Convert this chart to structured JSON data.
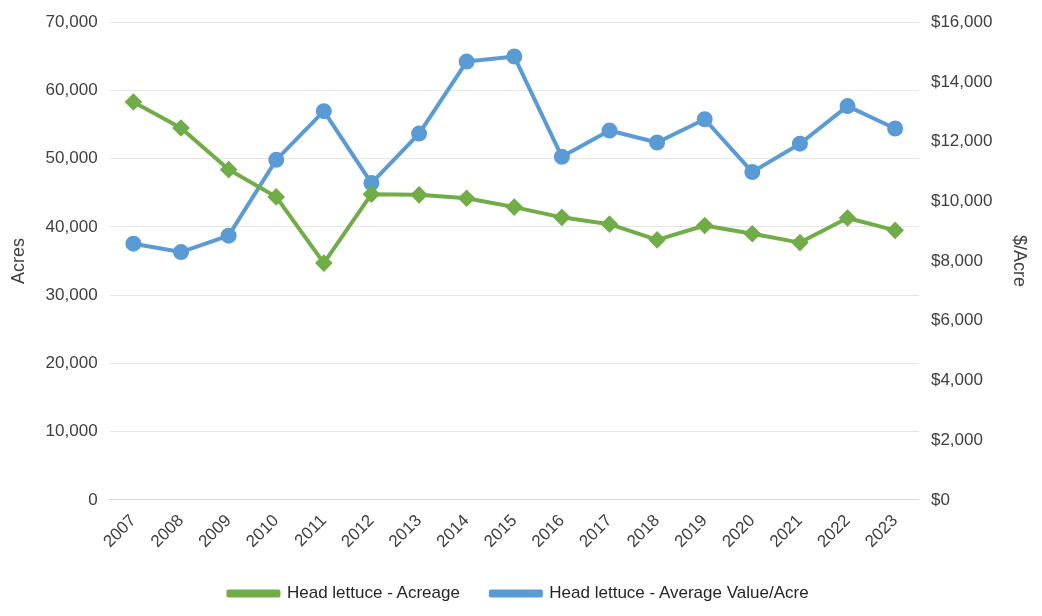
{
  "chart_data": {
    "type": "line",
    "ylabel": "Acres",
    "y2label": "$/Acre",
    "categories": [
      "2007",
      "2008",
      "2009",
      "2010",
      "2011",
      "2012",
      "2013",
      "2014",
      "2015",
      "2016",
      "2017",
      "2018",
      "2019",
      "2020",
      "2021",
      "2022",
      "2023"
    ],
    "series": [
      {
        "name": "Head lettuce - Acreage",
        "color": "#70ad47",
        "marker": "diamond",
        "values": [
          58300,
          54500,
          48400,
          44400,
          34700,
          44800,
          44700,
          44200,
          42900,
          41400,
          40400,
          38100,
          40200,
          39000,
          37700,
          41300,
          39500
        ]
      },
      {
        "name": "Head lettuce - Average Value/Acre",
        "color": "#5b9bd5",
        "marker": "circle",
        "axis": "y2",
        "values": [
          8580,
          8300,
          8850,
          11390,
          13020,
          10610,
          12270,
          14680,
          14850,
          11490,
          12370,
          11970,
          12750,
          10980,
          11930,
          13190,
          12440
        ]
      }
    ],
    "ylim": [
      0,
      70000
    ],
    "yticks": [
      {
        "value": 0,
        "label": "0"
      },
      {
        "value": 10000,
        "label": "10,000"
      },
      {
        "value": 20000,
        "label": "20,000"
      },
      {
        "value": 30000,
        "label": "30,000"
      },
      {
        "value": 40000,
        "label": "40,000"
      },
      {
        "value": 50000,
        "label": "50,000"
      },
      {
        "value": 60000,
        "label": "60,000"
      },
      {
        "value": 70000,
        "label": "70,000"
      }
    ],
    "y2lim": [
      0,
      16000
    ],
    "y2ticks": [
      {
        "value": 0,
        "label": "$0"
      },
      {
        "value": 2000,
        "label": "$2,000"
      },
      {
        "value": 4000,
        "label": "$4,000"
      },
      {
        "value": 6000,
        "label": "$6,000"
      },
      {
        "value": 8000,
        "label": "$8,000"
      },
      {
        "value": 10000,
        "label": "$10,000"
      },
      {
        "value": 12000,
        "label": "$12,000"
      },
      {
        "value": 14000,
        "label": "$14,000"
      },
      {
        "value": 16000,
        "label": "$16,000"
      }
    ],
    "grid": "y",
    "legend": "bottom",
    "line_style": "solid"
  }
}
